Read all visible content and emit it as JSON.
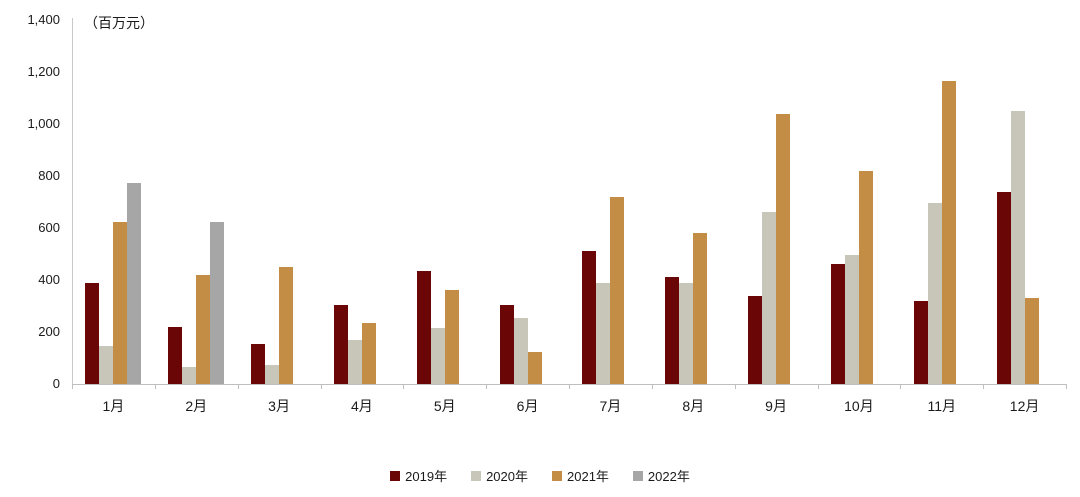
{
  "chart_data": {
    "type": "bar",
    "title": "",
    "unit_label": "（百万元）",
    "xlabel": "",
    "ylabel": "百万元",
    "categories": [
      "1月",
      "2月",
      "3月",
      "4月",
      "5月",
      "6月",
      "7月",
      "8月",
      "9月",
      "10月",
      "11月",
      "12月"
    ],
    "series": [
      {
        "name": "2019年",
        "color": "#6b0606",
        "values": [
          390,
          220,
          155,
          305,
          435,
          305,
          510,
          410,
          340,
          460,
          320,
          740
        ]
      },
      {
        "name": "2020年",
        "color": "#c7c6b8",
        "values": [
          145,
          65,
          75,
          170,
          215,
          255,
          390,
          390,
          660,
          495,
          695,
          1050
        ]
      },
      {
        "name": "2021年",
        "color": "#c38d46",
        "values": [
          625,
          420,
          450,
          235,
          360,
          125,
          720,
          580,
          1040,
          820,
          1165,
          330
        ]
      },
      {
        "name": "2022年",
        "color": "#a6a6a6",
        "values": [
          775,
          625,
          null,
          null,
          null,
          null,
          null,
          null,
          null,
          null,
          null,
          null
        ]
      }
    ],
    "ylim": [
      0,
      1400
    ],
    "ytick_step": 200,
    "ytick_labels": [
      "0",
      "200",
      "400",
      "600",
      "800",
      "1,000",
      "1,200",
      "1,400"
    ],
    "grid": false,
    "legend_position": "bottom"
  }
}
